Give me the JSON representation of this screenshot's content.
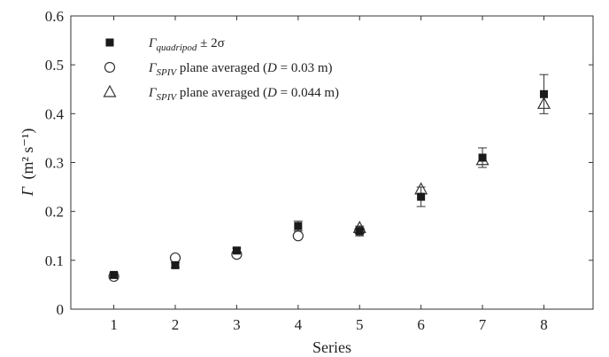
{
  "chart_data": {
    "type": "scatter",
    "title": "",
    "xlabel": "Series",
    "ylabel_symbol": "Γ",
    "ylabel_unit": "(m² s⁻¹)",
    "xlim": [
      0.3,
      8.8
    ],
    "ylim": [
      0,
      0.6
    ],
    "xticks": [
      1,
      2,
      3,
      4,
      5,
      6,
      7,
      8
    ],
    "yticks": [
      0,
      0.1,
      0.2,
      0.3,
      0.4,
      0.5,
      0.6
    ],
    "ytick_labels": [
      "0",
      "0.1",
      "0.2",
      "0.3",
      "0.4",
      "0.5",
      "0.6"
    ],
    "legend_position": "top-left",
    "series": [
      {
        "name": "Γquadripod ± 2σ",
        "legend_symbol": "Γ",
        "legend_subscript": "quadripod",
        "legend_suffix": " ± 2σ",
        "marker": "filled-square",
        "x": [
          1,
          2,
          3,
          4,
          5,
          6,
          7,
          8
        ],
        "y": [
          0.07,
          0.09,
          0.12,
          0.17,
          0.16,
          0.23,
          0.31,
          0.44
        ],
        "error_2sigma": [
          0.005,
          0.005,
          0.005,
          0.01,
          0.01,
          0.02,
          0.02,
          0.04
        ]
      },
      {
        "name": "ΓSPIV plane averaged (D = 0.03 m)",
        "legend_symbol": "Γ",
        "legend_subscript": "SPIV",
        "legend_suffix": " plane averaged (",
        "legend_italic": "D",
        "legend_tail": " = 0.03 m)",
        "marker": "open-circle",
        "x": [
          1,
          2,
          3,
          4,
          5
        ],
        "y": [
          0.067,
          0.105,
          0.112,
          0.15,
          0.16
        ]
      },
      {
        "name": "ΓSPIV plane averaged (D = 0.044 m)",
        "legend_symbol": "Γ",
        "legend_subscript": "SPIV",
        "legend_suffix": " plane averaged (",
        "legend_italic": "D",
        "legend_tail": " = 0.044 m)",
        "marker": "open-triangle",
        "x": [
          5,
          6,
          7,
          8
        ],
        "y": [
          0.166,
          0.245,
          0.305,
          0.42
        ]
      }
    ]
  }
}
